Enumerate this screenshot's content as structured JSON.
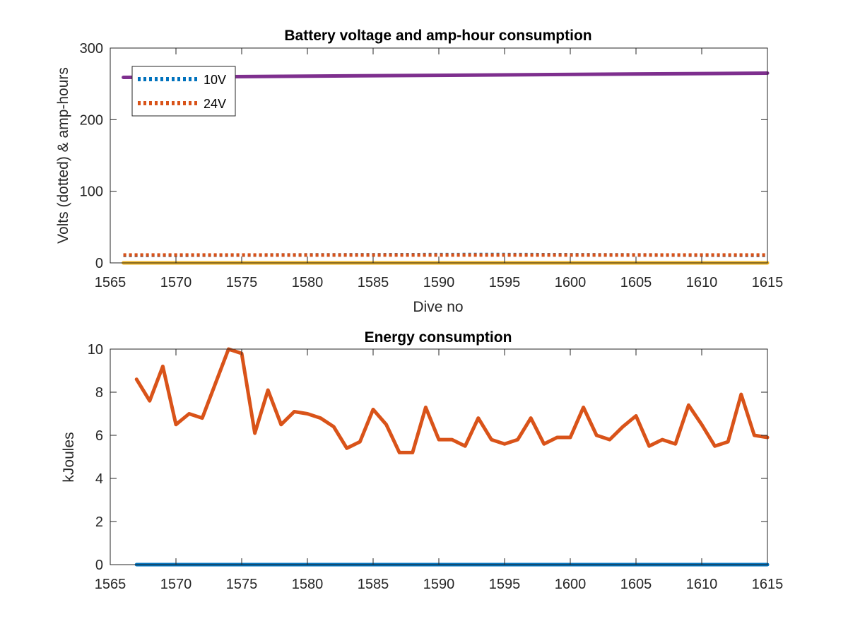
{
  "chart_data": [
    {
      "type": "line",
      "title": "Battery voltage and amp-hour consumption",
      "xlabel": "Dive no",
      "ylabel": "Volts (dotted) & amp-hours",
      "xlim": [
        1565,
        1615
      ],
      "ylim": [
        0,
        300
      ],
      "xticks": [
        "1565",
        "1570",
        "1575",
        "1580",
        "1585",
        "1590",
        "1595",
        "1600",
        "1605",
        "1610",
        "1615"
      ],
      "yticks": [
        "0",
        "100",
        "200",
        "300"
      ],
      "grid": false,
      "legend_position": "top-left",
      "series": [
        {
          "name": "10V",
          "style": "dotted",
          "color": "#0072BD",
          "x": [
            1566,
            1592,
            1595,
            1615
          ],
          "y": [
            10.5,
            11.5,
            11.5,
            10.5
          ]
        },
        {
          "name": "24V",
          "style": "dotted",
          "color": "#D95319",
          "x": [
            1566,
            1615
          ],
          "y": [
            11,
            11
          ]
        },
        {
          "style": "solid",
          "color": "#EDB120",
          "x": [
            1566,
            1615
          ],
          "y": [
            0,
            0
          ]
        },
        {
          "style": "solid",
          "color": "#7E2F8E",
          "x": [
            1566,
            1615
          ],
          "y": [
            259,
            265
          ]
        }
      ]
    },
    {
      "type": "line",
      "title": "Energy consumption",
      "xlabel": "",
      "ylabel": "kJoules",
      "xlim": [
        1565,
        1615
      ],
      "ylim": [
        0,
        10
      ],
      "xticks": [
        "1565",
        "1570",
        "1575",
        "1580",
        "1585",
        "1590",
        "1595",
        "1600",
        "1605",
        "1610",
        "1615"
      ],
      "yticks": [
        "0",
        "2",
        "4",
        "6",
        "8",
        "10"
      ],
      "grid": false,
      "series": [
        {
          "style": "solid",
          "color": "#0072BD",
          "x": [
            1567,
            1615
          ],
          "y": [
            0,
            0
          ]
        },
        {
          "style": "solid",
          "color": "#D95319",
          "x": [
            1567,
            1568,
            1569,
            1570,
            1571,
            1572,
            1573,
            1574,
            1575,
            1576,
            1577,
            1578,
            1579,
            1580,
            1581,
            1582,
            1583,
            1584,
            1585,
            1586,
            1587,
            1588,
            1589,
            1590,
            1591,
            1592,
            1593,
            1594,
            1595,
            1596,
            1597,
            1598,
            1599,
            1600,
            1601,
            1602,
            1603,
            1604,
            1605,
            1606,
            1607,
            1608,
            1609,
            1610,
            1611,
            1612,
            1613,
            1614,
            1615
          ],
          "y": [
            8.6,
            7.6,
            9.2,
            6.5,
            7.0,
            6.8,
            8.4,
            10.0,
            9.8,
            6.1,
            8.1,
            6.5,
            7.1,
            7.0,
            6.8,
            6.4,
            5.4,
            5.7,
            7.2,
            6.5,
            5.2,
            5.2,
            7.3,
            5.8,
            5.8,
            5.5,
            6.8,
            5.8,
            5.6,
            5.8,
            6.8,
            5.6,
            5.9,
            5.9,
            7.3,
            6.0,
            5.8,
            6.4,
            6.9,
            5.5,
            5.8,
            5.6,
            7.4,
            6.5,
            5.5,
            5.7,
            7.9,
            6.0,
            5.9
          ]
        }
      ]
    }
  ]
}
